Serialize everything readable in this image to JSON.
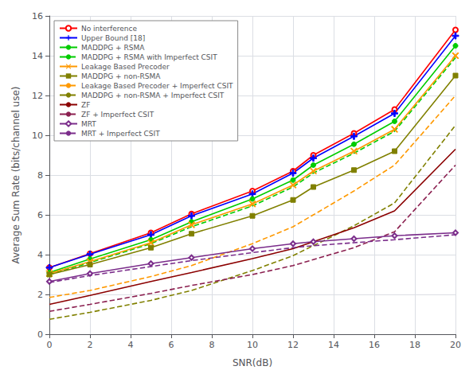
{
  "chart_data": {
    "type": "line",
    "xlabel": "SNR(dB)",
    "ylabel": "Average Sum Rate (bits/channel use)",
    "x": [
      0,
      2,
      5,
      7,
      10,
      12,
      13,
      15,
      17,
      20
    ],
    "series": [
      {
        "name": "No interference",
        "color": "#ff0000",
        "marker": "circle-open",
        "line_style": "solid",
        "values": [
          3.35,
          4.05,
          5.1,
          6.05,
          7.2,
          8.2,
          9.0,
          10.1,
          11.3,
          15.3
        ]
      },
      {
        "name": "Upper Bound [18]",
        "color": "#0000ff",
        "marker": "plus",
        "line_style": "solid",
        "values": [
          3.35,
          4.02,
          5.0,
          5.95,
          7.05,
          8.1,
          8.85,
          9.95,
          11.1,
          15.0
        ]
      },
      {
        "name": "MADDPG + RSMA",
        "color": "#00cc00",
        "marker": "circle",
        "line_style": "solid",
        "values": [
          3.1,
          3.78,
          4.75,
          5.65,
          6.8,
          7.75,
          8.5,
          9.55,
          10.7,
          14.5
        ]
      },
      {
        "name": "MADDPG + RSMA with Imperfect CSIT",
        "color": "#00cc00",
        "line_style": "dashed",
        "values": [
          3.0,
          3.6,
          4.55,
          5.4,
          6.45,
          7.4,
          8.1,
          9.1,
          10.2,
          13.9
        ]
      },
      {
        "name": "Leakage Based Precoder",
        "color": "#ff9900",
        "marker": "x",
        "line_style": "solid",
        "values": [
          3.05,
          3.65,
          4.6,
          5.5,
          6.55,
          7.5,
          8.2,
          9.2,
          10.3,
          14.0
        ]
      },
      {
        "name": "MADDPG + non-RSMA",
        "color": "#808000",
        "marker": "square",
        "line_style": "solid",
        "values": [
          3.0,
          3.5,
          4.35,
          5.05,
          5.95,
          6.75,
          7.4,
          8.25,
          9.2,
          13.0
        ]
      },
      {
        "name": "Leakage Based Precoder + Imperfect CSIT",
        "color": "#ff9900",
        "line_style": "dashed",
        "values": [
          1.85,
          2.2,
          2.9,
          3.45,
          4.55,
          5.4,
          6.0,
          7.2,
          8.5,
          12.0
        ]
      },
      {
        "name": "MADDPG + non-RSMA + Imperfect CSIT",
        "color": "#808000",
        "line_style": "dashed",
        "values": [
          0.75,
          1.1,
          1.7,
          2.2,
          3.2,
          3.95,
          4.45,
          5.45,
          6.6,
          10.5
        ]
      },
      {
        "name": "ZF",
        "color": "#8b0000",
        "line_style": "solid",
        "values": [
          1.5,
          1.95,
          2.65,
          3.1,
          3.8,
          4.3,
          4.65,
          5.35,
          6.2,
          9.3
        ]
      },
      {
        "name": "ZF + Imperfect CSIT",
        "color": "#8b2050",
        "line_style": "dashed",
        "values": [
          1.15,
          1.5,
          2.05,
          2.45,
          3.0,
          3.45,
          3.75,
          4.35,
          5.15,
          8.5
        ]
      },
      {
        "name": "MRT",
        "color": "#7b2d8b",
        "marker": "diamond-open",
        "line_style": "solid",
        "values": [
          2.65,
          3.05,
          3.55,
          3.85,
          4.3,
          4.55,
          4.65,
          4.8,
          4.95,
          5.1
        ]
      },
      {
        "name": "MRT + Imperfect CSIT",
        "color": "#7b2d8b",
        "line_style": "dashed",
        "values": [
          2.6,
          2.95,
          3.4,
          3.7,
          4.1,
          4.35,
          4.45,
          4.6,
          4.75,
          5.0
        ]
      }
    ],
    "xlim": [
      0,
      20
    ],
    "ylim": [
      0,
      16
    ],
    "xticks": [
      0,
      2,
      4,
      6,
      8,
      10,
      12,
      14,
      16,
      18,
      20
    ],
    "yticks": [
      0,
      2,
      4,
      6,
      8,
      10,
      12,
      14,
      16
    ],
    "grid": true,
    "legend": "upper left"
  }
}
